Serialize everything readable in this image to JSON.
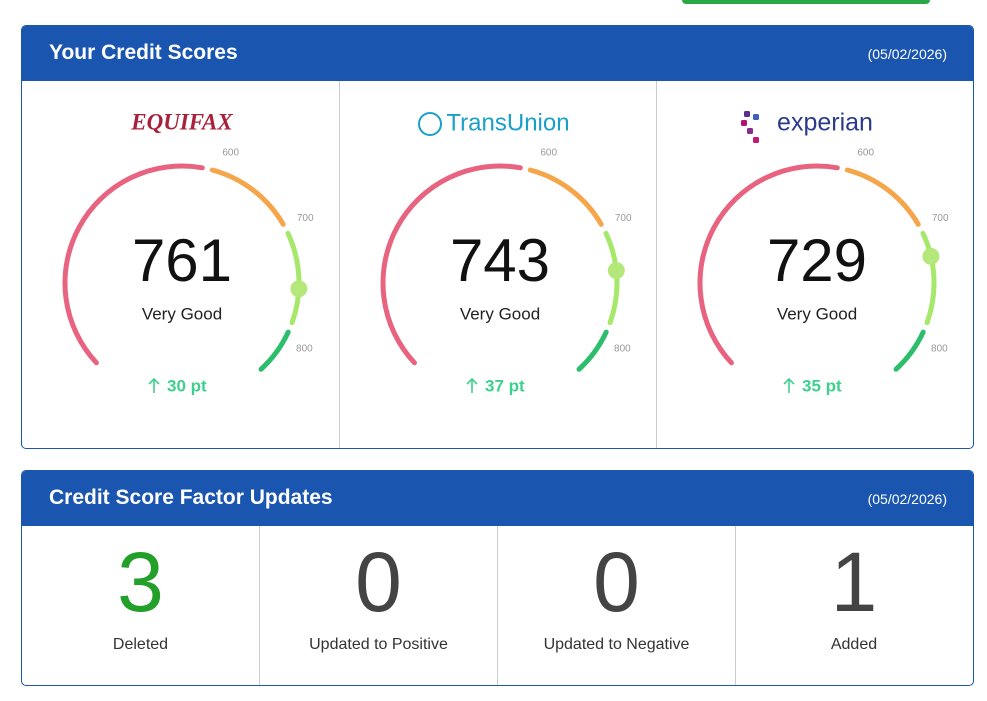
{
  "scores": {
    "title": "Your Credit Scores",
    "date": "(05/02/2026)",
    "ticks": [
      600,
      700,
      800
    ],
    "bureaus": [
      {
        "name": "EQUIFAX",
        "score": 761,
        "rating": "Very Good",
        "change": "30 pt"
      },
      {
        "name": "TransUnion",
        "score": 743,
        "rating": "Very Good",
        "change": "37 pt"
      },
      {
        "name": "experian",
        "score": 729,
        "rating": "Very Good",
        "change": "35 pt"
      }
    ]
  },
  "factors": {
    "title": "Credit Score Factor Updates",
    "date": "(05/02/2026)",
    "items": [
      {
        "count": 3,
        "label": "Deleted"
      },
      {
        "count": 0,
        "label": "Updated to Positive"
      },
      {
        "count": 0,
        "label": "Updated to Negative"
      },
      {
        "count": 1,
        "label": "Added"
      }
    ]
  }
}
